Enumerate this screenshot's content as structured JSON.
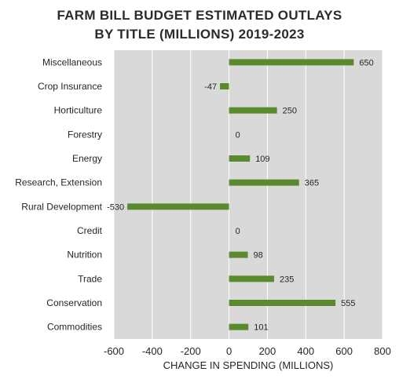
{
  "chart_data": {
    "type": "bar",
    "orientation": "horizontal",
    "title_lines": [
      "FARM BILL BUDGET ESTIMATED OUTLAYS",
      "BY TITLE (MILLIONS) 2019-2023"
    ],
    "xlabel": "CHANGE IN SPENDING (MILLIONS)",
    "ylabel": "",
    "categories": [
      "Miscellaneous",
      "Crop Insurance",
      "Horticulture",
      "Forestry",
      "Energy",
      "Research, Extension",
      "Rural  Development",
      "Credit",
      "Nutrition",
      "Trade",
      "Conservation",
      "Commodities"
    ],
    "values": [
      650,
      -47,
      250,
      0,
      109,
      365,
      -530,
      0,
      98,
      235,
      555,
      101
    ],
    "xlim": [
      -600,
      800
    ],
    "xticks": [
      -600,
      -400,
      -200,
      0,
      200,
      400,
      600,
      800
    ],
    "grid": true,
    "legend": "none",
    "colors": {
      "bar": "#5a8a2e",
      "plot_background": "#d9d9d9",
      "gridline": "#ffffff",
      "text": "#262626"
    }
  }
}
